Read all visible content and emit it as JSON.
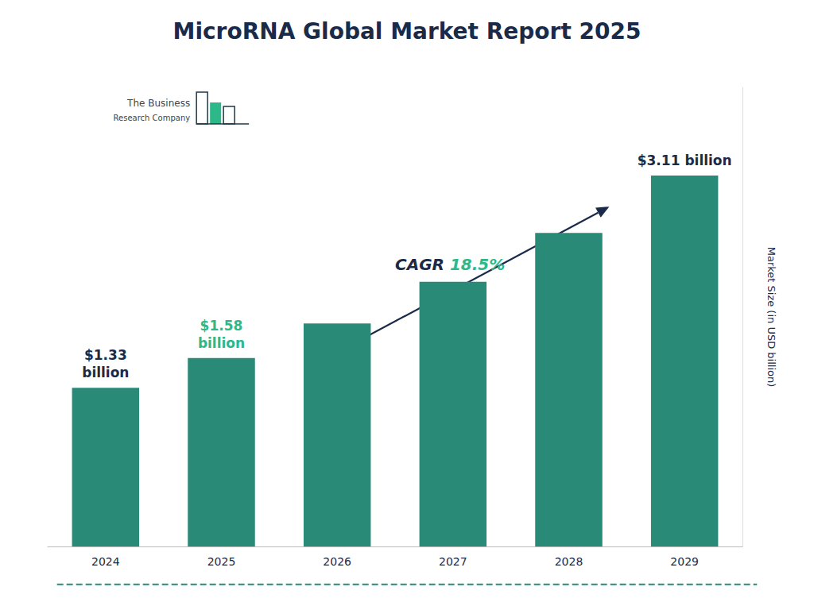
{
  "chart_data": {
    "type": "bar",
    "title": "MicroRNA Global Market Report 2025",
    "categories": [
      "2024",
      "2025",
      "2026",
      "2027",
      "2028",
      "2029"
    ],
    "values": [
      1.33,
      1.58,
      1.87,
      2.22,
      2.63,
      3.11
    ],
    "color": "#2a8a78",
    "ylabel": "Market Size (in USD billion)",
    "ylim": [
      0,
      3.85
    ],
    "yticks": [],
    "tick_labels": "x",
    "grid": false,
    "annotations": [
      {
        "category": "2024",
        "text": "$1.33\nbillion",
        "color": "#1a2b4a"
      },
      {
        "category": "2025",
        "text": "$1.58\nbillion",
        "color": "#2db88a"
      },
      {
        "category": "2029",
        "text": "$3.11 billion",
        "color": "#1a2b4a"
      },
      {
        "text": "CAGR",
        "color": "#1a2b4a"
      },
      {
        "text": "18.5%",
        "color": "#2db88a"
      },
      {
        "text": "The Business"
      },
      {
        "text": "Research Company"
      }
    ]
  }
}
